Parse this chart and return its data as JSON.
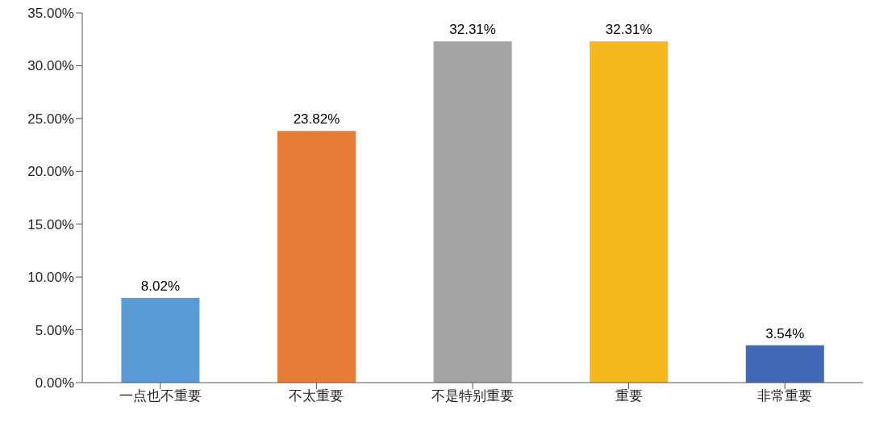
{
  "chart_data": {
    "type": "bar",
    "categories": [
      "一点也不重要",
      "不太重要",
      "不是特别重要",
      "重要",
      "非常重要"
    ],
    "values": [
      8.02,
      23.82,
      32.31,
      32.31,
      3.54
    ],
    "colors": [
      "#5b9bd5",
      "#e67c35",
      "#a5a5a5",
      "#f5b91e",
      "#4169b6"
    ],
    "value_labels": [
      "8.02%",
      "23.82%",
      "32.31%",
      "32.31%",
      "3.54%"
    ],
    "ylim": [
      0,
      35
    ],
    "yticks": [
      {
        "value": 0,
        "label": "0.00%"
      },
      {
        "value": 5,
        "label": "5.00%"
      },
      {
        "value": 10,
        "label": "10.00%"
      },
      {
        "value": 15,
        "label": "15.00%"
      },
      {
        "value": 20,
        "label": "20.00%"
      },
      {
        "value": 25,
        "label": "25.00%"
      },
      {
        "value": 30,
        "label": "30.00%"
      },
      {
        "value": 35,
        "label": "35.00%"
      }
    ],
    "grid": false,
    "legend": false
  }
}
